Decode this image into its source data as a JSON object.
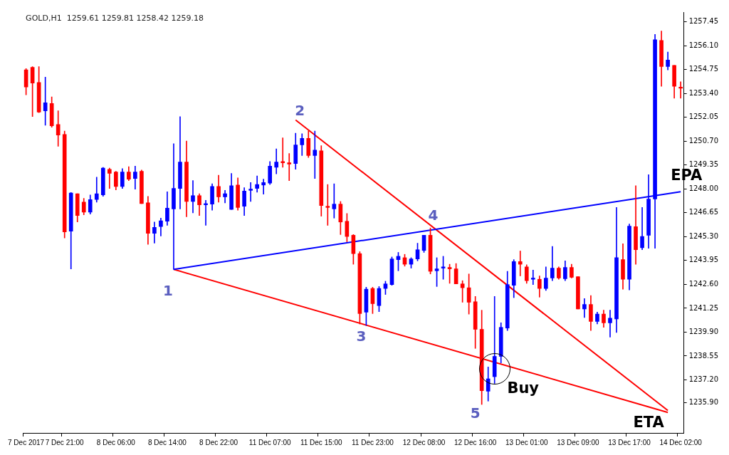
{
  "chart_data": {
    "type": "candlestick",
    "title": "GOLD,H1  1259.61 1259.81 1258.42 1259.18",
    "categories": [
      "7 Dec 2017",
      null,
      null,
      null,
      null,
      null,
      "7 Dec 21:00",
      null,
      null,
      null,
      null,
      null,
      null,
      null,
      "8 Dec 06:00",
      null,
      null,
      null,
      null,
      null,
      null,
      null,
      "8 Dec 14:00",
      null,
      null,
      null,
      null,
      null,
      null,
      null,
      "8 Dec 22:00",
      null,
      null,
      null,
      null,
      null,
      null,
      null,
      "11 Dec 07:00",
      null,
      null,
      null,
      null,
      null,
      null,
      null,
      "11 Dec 15:00",
      null,
      null,
      null,
      null,
      null,
      null,
      null,
      "11 Dec 23:00",
      null,
      null,
      null,
      null,
      null,
      null,
      null,
      "12 Dec 08:00",
      null,
      null,
      null,
      null,
      null,
      null,
      null,
      "12 Dec 16:00",
      null,
      null,
      null,
      null,
      null,
      null,
      null,
      "13 Dec 01:00",
      null,
      null,
      null,
      null,
      null,
      null,
      null,
      "13 Dec 09:00",
      null,
      null,
      null,
      null,
      null,
      null,
      null,
      "13 Dec 17:00",
      null,
      null,
      null,
      null,
      null,
      null,
      null,
      "14 Dec 02:00"
    ],
    "ohlc": [
      [
        1254.73,
        1254.81,
        1253.32,
        1253.76
      ],
      [
        1254.88,
        1254.92,
        1252.09,
        1253.99
      ],
      [
        1254.02,
        1254.92,
        1252.31,
        1252.35
      ],
      [
        1252.42,
        1254.32,
        1251.6,
        1252.87
      ],
      [
        1252.83,
        1253.2,
        1251.49,
        1251.57
      ],
      [
        1251.64,
        1252.42,
        1250.41,
        1251.05
      ],
      [
        1251.08,
        1251.27,
        1245.23,
        1245.57
      ],
      [
        1245.61,
        1247.8,
        1243.48,
        1247.77
      ],
      [
        1247.73,
        1247.73,
        1246.13,
        1246.5
      ],
      [
        1247.25,
        1247.47,
        1246.54,
        1246.69
      ],
      [
        1246.69,
        1247.66,
        1246.58,
        1247.4
      ],
      [
        1247.4,
        1248.66,
        1247.25,
        1247.73
      ],
      [
        1247.66,
        1249.22,
        1247.58,
        1249.18
      ],
      [
        1249.11,
        1249.18,
        1248.03,
        1248.88
      ],
      [
        1248.96,
        1249.0,
        1247.95,
        1248.14
      ],
      [
        1248.14,
        1249.15,
        1248.03,
        1248.96
      ],
      [
        1248.96,
        1249.26,
        1248.47,
        1248.55
      ],
      [
        1248.59,
        1249.29,
        1247.99,
        1248.96
      ],
      [
        1249.0,
        1249.07,
        1247.17,
        1247.17
      ],
      [
        1247.21,
        1247.58,
        1244.86,
        1245.49
      ],
      [
        1245.49,
        1246.13,
        1244.94,
        1245.83
      ],
      [
        1245.87,
        1246.35,
        1245.34,
        1246.2
      ],
      [
        1246.17,
        1247.84,
        1245.94,
        1246.91
      ],
      [
        1246.87,
        1250.56,
        1243.45,
        1248.03
      ],
      [
        1248.03,
        1252.09,
        1246.87,
        1249.52
      ],
      [
        1249.52,
        1250.71,
        1246.43,
        1247.29
      ],
      [
        1247.29,
        1248.47,
        1246.65,
        1247.62
      ],
      [
        1247.62,
        1247.73,
        1246.5,
        1247.1
      ],
      [
        1247.1,
        1247.36,
        1245.94,
        1247.17
      ],
      [
        1247.14,
        1248.29,
        1246.8,
        1248.14
      ],
      [
        1248.14,
        1248.77,
        1247.25,
        1247.55
      ],
      [
        1247.55,
        1247.92,
        1247.21,
        1247.73
      ],
      [
        1246.84,
        1248.88,
        1246.84,
        1248.18
      ],
      [
        1248.22,
        1248.62,
        1246.8,
        1246.95
      ],
      [
        1247.02,
        1248.07,
        1246.5,
        1247.88
      ],
      [
        1247.92,
        1248.36,
        1247.29,
        1247.99
      ],
      [
        1248.03,
        1248.73,
        1247.81,
        1248.25
      ],
      [
        1248.22,
        1248.55,
        1247.7,
        1248.36
      ],
      [
        1248.33,
        1249.55,
        1248.25,
        1249.29
      ],
      [
        1249.22,
        1250.26,
        1248.85,
        1249.52
      ],
      [
        1249.55,
        1250.89,
        1249.22,
        1249.48
      ],
      [
        1249.48,
        1250.0,
        1248.47,
        1249.41
      ],
      [
        1249.44,
        1251.15,
        1249.11,
        1250.49
      ],
      [
        1250.49,
        1251.12,
        1249.89,
        1250.86
      ],
      [
        1250.86,
        1251.27,
        1249.78,
        1249.89
      ],
      [
        1249.89,
        1251.27,
        1248.59,
        1250.19
      ],
      [
        1250.15,
        1250.45,
        1246.46,
        1247.06
      ],
      [
        1247.02,
        1248.25,
        1245.94,
        1246.95
      ],
      [
        1246.87,
        1248.29,
        1246.35,
        1247.14
      ],
      [
        1247.14,
        1247.29,
        1245.42,
        1246.13
      ],
      [
        1246.17,
        1246.61,
        1245.01,
        1245.31
      ],
      [
        1245.38,
        1245.42,
        1243.74,
        1244.34
      ],
      [
        1244.34,
        1244.45,
        1240.36,
        1240.95
      ],
      [
        1241.03,
        1242.44,
        1240.28,
        1242.33
      ],
      [
        1242.37,
        1242.44,
        1240.95,
        1241.51
      ],
      [
        1241.4,
        1242.48,
        1241.06,
        1242.37
      ],
      [
        1242.37,
        1242.78,
        1242.03,
        1242.63
      ],
      [
        1242.59,
        1244.15,
        1242.55,
        1244.04
      ],
      [
        1244.0,
        1244.41,
        1243.37,
        1244.19
      ],
      [
        1244.11,
        1244.3,
        1243.63,
        1243.74
      ],
      [
        1243.74,
        1244.11,
        1243.52,
        1244.04
      ],
      [
        1244.04,
        1244.93,
        1243.93,
        1244.56
      ],
      [
        1244.52,
        1245.38,
        1244.41,
        1245.38
      ],
      [
        1245.38,
        1245.79,
        1243.19,
        1243.34
      ],
      [
        1243.37,
        1244.11,
        1242.48,
        1243.48
      ],
      [
        1243.52,
        1244.19,
        1242.89,
        1243.59
      ],
      [
        1243.56,
        1243.74,
        1242.66,
        1243.48
      ],
      [
        1243.48,
        1243.78,
        1242.63,
        1242.63
      ],
      [
        1242.63,
        1242.81,
        1241.59,
        1242.41
      ],
      [
        1242.41,
        1243.19,
        1240.92,
        1241.59
      ],
      [
        1241.62,
        1241.92,
        1238.98,
        1240.06
      ],
      [
        1240.06,
        1241.14,
        1235.81,
        1236.59
      ],
      [
        1236.56,
        1237.93,
        1236.0,
        1237.26
      ],
      [
        1237.38,
        1241.92,
        1237.0,
        1238.53
      ],
      [
        1238.53,
        1240.43,
        1238.16,
        1240.17
      ],
      [
        1240.13,
        1243.34,
        1239.99,
        1242.59
      ],
      [
        1242.55,
        1244.0,
        1241.85,
        1243.89
      ],
      [
        1243.89,
        1244.49,
        1243.08,
        1243.74
      ],
      [
        1243.59,
        1243.71,
        1242.66,
        1242.81
      ],
      [
        1242.89,
        1243.41,
        1242.59,
        1242.96
      ],
      [
        1242.89,
        1243.08,
        1241.88,
        1242.37
      ],
      [
        1242.37,
        1243.59,
        1242.26,
        1242.96
      ],
      [
        1242.96,
        1244.75,
        1242.81,
        1243.52
      ],
      [
        1243.52,
        1243.59,
        1242.89,
        1242.96
      ],
      [
        1242.92,
        1243.93,
        1242.81,
        1243.56
      ],
      [
        1243.56,
        1243.74,
        1242.96,
        1243.0
      ],
      [
        1243.04,
        1243.04,
        1241.21,
        1241.21
      ],
      [
        1241.21,
        1241.8,
        1240.73,
        1241.47
      ],
      [
        1241.47,
        1241.97,
        1239.99,
        1240.51
      ],
      [
        1240.51,
        1241.03,
        1240.36,
        1240.92
      ],
      [
        1240.92,
        1241.14,
        1240.17,
        1240.43
      ],
      [
        1240.43,
        1241.14,
        1239.62,
        1240.69
      ],
      [
        1240.65,
        1246.95,
        1239.88,
        1244.11
      ],
      [
        1244.0,
        1244.9,
        1242.33,
        1242.89
      ],
      [
        1242.89,
        1246.02,
        1242.29,
        1245.9
      ],
      [
        1245.87,
        1248.18,
        1243.74,
        1244.56
      ],
      [
        1244.67,
        1246.95,
        1244.56,
        1245.31
      ],
      [
        1245.38,
        1248.81,
        1244.64,
        1247.43
      ],
      [
        1247.43,
        1256.74,
        1244.64,
        1256.44
      ],
      [
        1256.4,
        1256.93,
        1253.8,
        1254.92
      ],
      [
        1254.92,
        1255.74,
        1254.73,
        1255.29
      ],
      [
        1254.99,
        1254.99,
        1253.13,
        1253.8
      ],
      [
        1253.76,
        1254.06,
        1253.13,
        1253.69
      ]
    ],
    "colors": [
      "#ff0000",
      "#ff0000",
      "#ff0000",
      "#0000ff",
      "#ff0000",
      "#ff0000",
      "#ff0000",
      "#0000ff",
      "#ff0000",
      "#ff0000",
      "#0000ff",
      "#0000ff",
      "#0000ff",
      "#ff0000",
      "#ff0000",
      "#0000ff",
      "#ff0000",
      "#0000ff",
      "#ff0000",
      "#ff0000",
      "#0000ff",
      "#0000ff",
      "#0000ff",
      "#0000ff",
      "#0000ff",
      "#ff0000",
      "#0000ff",
      "#ff0000",
      "#0000ff",
      "#0000ff",
      "#ff0000",
      "#0000ff",
      "#0000ff",
      "#ff0000",
      "#0000ff",
      "#0000ff",
      "#0000ff",
      "#0000ff",
      "#0000ff",
      "#0000ff",
      "#ff0000",
      "#ff0000",
      "#0000ff",
      "#0000ff",
      "#ff0000",
      "#0000ff",
      "#ff0000",
      "#ff0000",
      "#0000ff",
      "#ff0000",
      "#ff0000",
      "#ff0000",
      "#ff0000",
      "#0000ff",
      "#ff0000",
      "#0000ff",
      "#0000ff",
      "#0000ff",
      "#0000ff",
      "#ff0000",
      "#0000ff",
      "#0000ff",
      "#0000ff",
      "#ff0000",
      "#0000ff",
      "#0000ff",
      "#ff0000",
      "#ff0000",
      "#ff0000",
      "#ff0000",
      "#ff0000",
      "#ff0000",
      "#0000ff",
      "#0000ff",
      "#0000ff",
      "#0000ff",
      "#0000ff",
      "#ff0000",
      "#ff0000",
      "#0000ff",
      "#ff0000",
      "#0000ff",
      "#0000ff",
      "#ff0000",
      "#0000ff",
      "#ff0000",
      "#ff0000",
      "#0000ff",
      "#ff0000",
      "#0000ff",
      "#ff0000",
      "#0000ff",
      "#0000ff",
      "#ff0000",
      "#0000ff",
      "#ff0000",
      "#0000ff",
      "#0000ff",
      "#0000ff",
      "#ff0000",
      "#0000ff",
      "#ff0000",
      "#ff0000"
    ],
    "series": [
      {
        "type": "line",
        "color": "#0000ff",
        "values": [
          null,
          null,
          null,
          null,
          null,
          null,
          null,
          null,
          null,
          null,
          null,
          null,
          null,
          null,
          null,
          null,
          null,
          null,
          null,
          null,
          null,
          null,
          null,
          1243.45,
          null,
          null,
          null,
          null,
          null,
          null,
          null,
          null,
          null,
          null,
          null,
          null,
          null,
          null,
          null,
          null,
          null,
          null,
          null,
          null,
          null,
          null,
          null,
          null,
          null,
          null,
          null,
          null,
          null,
          null,
          null,
          null,
          null,
          null,
          null,
          null,
          null,
          null,
          null,
          null,
          null,
          null,
          null,
          null,
          null,
          null,
          null,
          null,
          null,
          null,
          null,
          null,
          null,
          null,
          null,
          null,
          null,
          null,
          null,
          null,
          null,
          null,
          null,
          null,
          null,
          null,
          null,
          null,
          null,
          null,
          null,
          null,
          null,
          null,
          null,
          null,
          null,
          null,
          1247.84
        ]
      },
      {
        "type": "line",
        "color": "#ff0000",
        "values": [
          null,
          null,
          null,
          null,
          null,
          null,
          null,
          null,
          null,
          null,
          null,
          null,
          null,
          null,
          null,
          null,
          null,
          null,
          null,
          null,
          null,
          null,
          null,
          1243.45,
          null,
          null,
          null,
          null,
          null,
          null,
          null,
          null,
          null,
          null,
          null,
          null,
          null,
          null,
          null,
          null,
          null,
          null,
          null,
          null,
          null,
          null,
          null,
          null,
          null,
          null,
          null,
          null,
          null,
          null,
          null,
          null,
          null,
          null,
          null,
          null,
          null,
          null,
          null,
          null,
          null,
          null,
          null,
          null,
          null,
          null,
          null,
          null,
          null,
          null,
          null,
          null,
          null,
          null,
          null,
          null,
          null,
          null,
          null,
          null,
          null,
          null,
          null,
          null,
          null,
          null,
          null,
          null,
          null,
          null,
          null,
          null,
          null,
          null,
          null,
          null,
          1235.36,
          null,
          null
        ]
      },
      {
        "type": "line",
        "color": "#ff0000",
        "values": [
          null,
          null,
          null,
          null,
          null,
          null,
          null,
          null,
          null,
          null,
          null,
          null,
          null,
          null,
          null,
          null,
          null,
          null,
          null,
          null,
          null,
          null,
          null,
          null,
          null,
          null,
          null,
          null,
          null,
          null,
          null,
          null,
          null,
          null,
          null,
          null,
          null,
          null,
          null,
          null,
          null,
          null,
          1251.9,
          null,
          null,
          null,
          null,
          null,
          null,
          null,
          null,
          null,
          null,
          null,
          null,
          null,
          null,
          null,
          null,
          null,
          null,
          null,
          null,
          null,
          null,
          null,
          null,
          null,
          null,
          null,
          null,
          null,
          null,
          null,
          null,
          null,
          null,
          null,
          null,
          null,
          null,
          null,
          null,
          null,
          null,
          null,
          null,
          null,
          null,
          null,
          null,
          null,
          null,
          null,
          null,
          null,
          null,
          null,
          null,
          null,
          1235.47,
          null,
          null
        ]
      }
    ],
    "ylim": [
      1234.2,
      1258.0
    ],
    "yticks": [
      1257.45,
      {
        "value": 1256.1,
        "label": "1256.10"
      },
      1254.75,
      {
        "value": 1253.4,
        "label": "1253.40"
      },
      1252.05,
      {
        "value": 1250.7,
        "label": "1250.70"
      },
      1249.35,
      {
        "value": 1248,
        "label": "1248.00"
      },
      1246.65,
      {
        "value": 1245.3,
        "label": "1245.30"
      },
      1243.95,
      {
        "value": 1242.6,
        "label": "1242.60"
      },
      1241.25,
      {
        "value": 1239.9,
        "label": "1239.90"
      },
      1238.55,
      {
        "value": 1237.2,
        "label": "1237.20"
      },
      {
        "value": 1235.9,
        "label": "1235.90"
      }
    ],
    "annotations": [
      "1",
      {
        "text": "2",
        "y": 1251.9
      },
      {
        "text": "3",
        "y": 1240.4
      },
      {
        "text": "4",
        "y": 1245.9
      },
      "5",
      {
        "text": "Buy",
        "y": 1237.82
      },
      "EPA",
      "ETA"
    ]
  }
}
